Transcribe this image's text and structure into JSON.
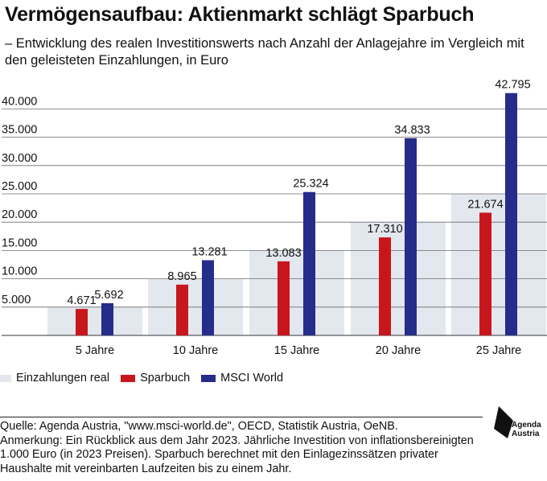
{
  "title": "Vermögensaufbau: Aktienmarkt schlägt Sparbuch",
  "subtitle": "– Entwicklung des realen Investitionswerts nach Anzahl der Anlagejahre im Vergleich mit den geleisteten Einzahlungen, in Euro",
  "chart_data": {
    "type": "bar",
    "categories": [
      "5 Jahre",
      "10 Jahre",
      "15 Jahre",
      "20 Jahre",
      "25 Jahre"
    ],
    "series": [
      {
        "name": "Einzahlungen real",
        "values": [
          5000,
          10000,
          15000,
          20000,
          25000
        ],
        "color": "#e3e8ef",
        "style": "background-area"
      },
      {
        "name": "Sparbuch",
        "values": [
          4671,
          8965,
          13083,
          17310,
          21674
        ],
        "labels": [
          "4.671",
          "8.965",
          "13.083",
          "17.310",
          "21.674"
        ],
        "color": "#c8161d"
      },
      {
        "name": "MSCI World",
        "values": [
          5692,
          13281,
          25324,
          34833,
          42795
        ],
        "labels": [
          "5.692",
          "13.281",
          "25.324",
          "34.833",
          "42.795"
        ],
        "color": "#262c8a"
      }
    ],
    "yticks": [
      5000,
      10000,
      15000,
      20000,
      25000,
      30000,
      35000,
      40000
    ],
    "ytick_labels": [
      "5.000",
      "10.000",
      "15.000",
      "20.000",
      "25.000",
      "30.000",
      "35.000",
      "40.000"
    ],
    "ylim": [
      0,
      45000
    ],
    "grid": true,
    "legend_position": "bottom-left"
  },
  "legend": [
    {
      "label": "Einzahlungen real",
      "color": "#e3e8ef"
    },
    {
      "label": "Sparbuch",
      "color": "#c8161d"
    },
    {
      "label": "MSCI World",
      "color": "#262c8a"
    }
  ],
  "footer": {
    "source": "Quelle: Agenda Austria, \"www.msci-world.de\", OECD, Statistik Austria, OeNB.",
    "note": "Anmerkung: Ein Rückblick aus dem Jahr 2023. Jährliche Investition von inflationsbereinigten 1.000 Euro (in 2023 Preisen). Sparbuch berechnet mit den Einlagezinssätzen privater Haushalte mit vereinbarten Laufzeiten bis zu einem Jahr."
  },
  "logo": {
    "line1": "Agenda",
    "line2": "Austria"
  }
}
